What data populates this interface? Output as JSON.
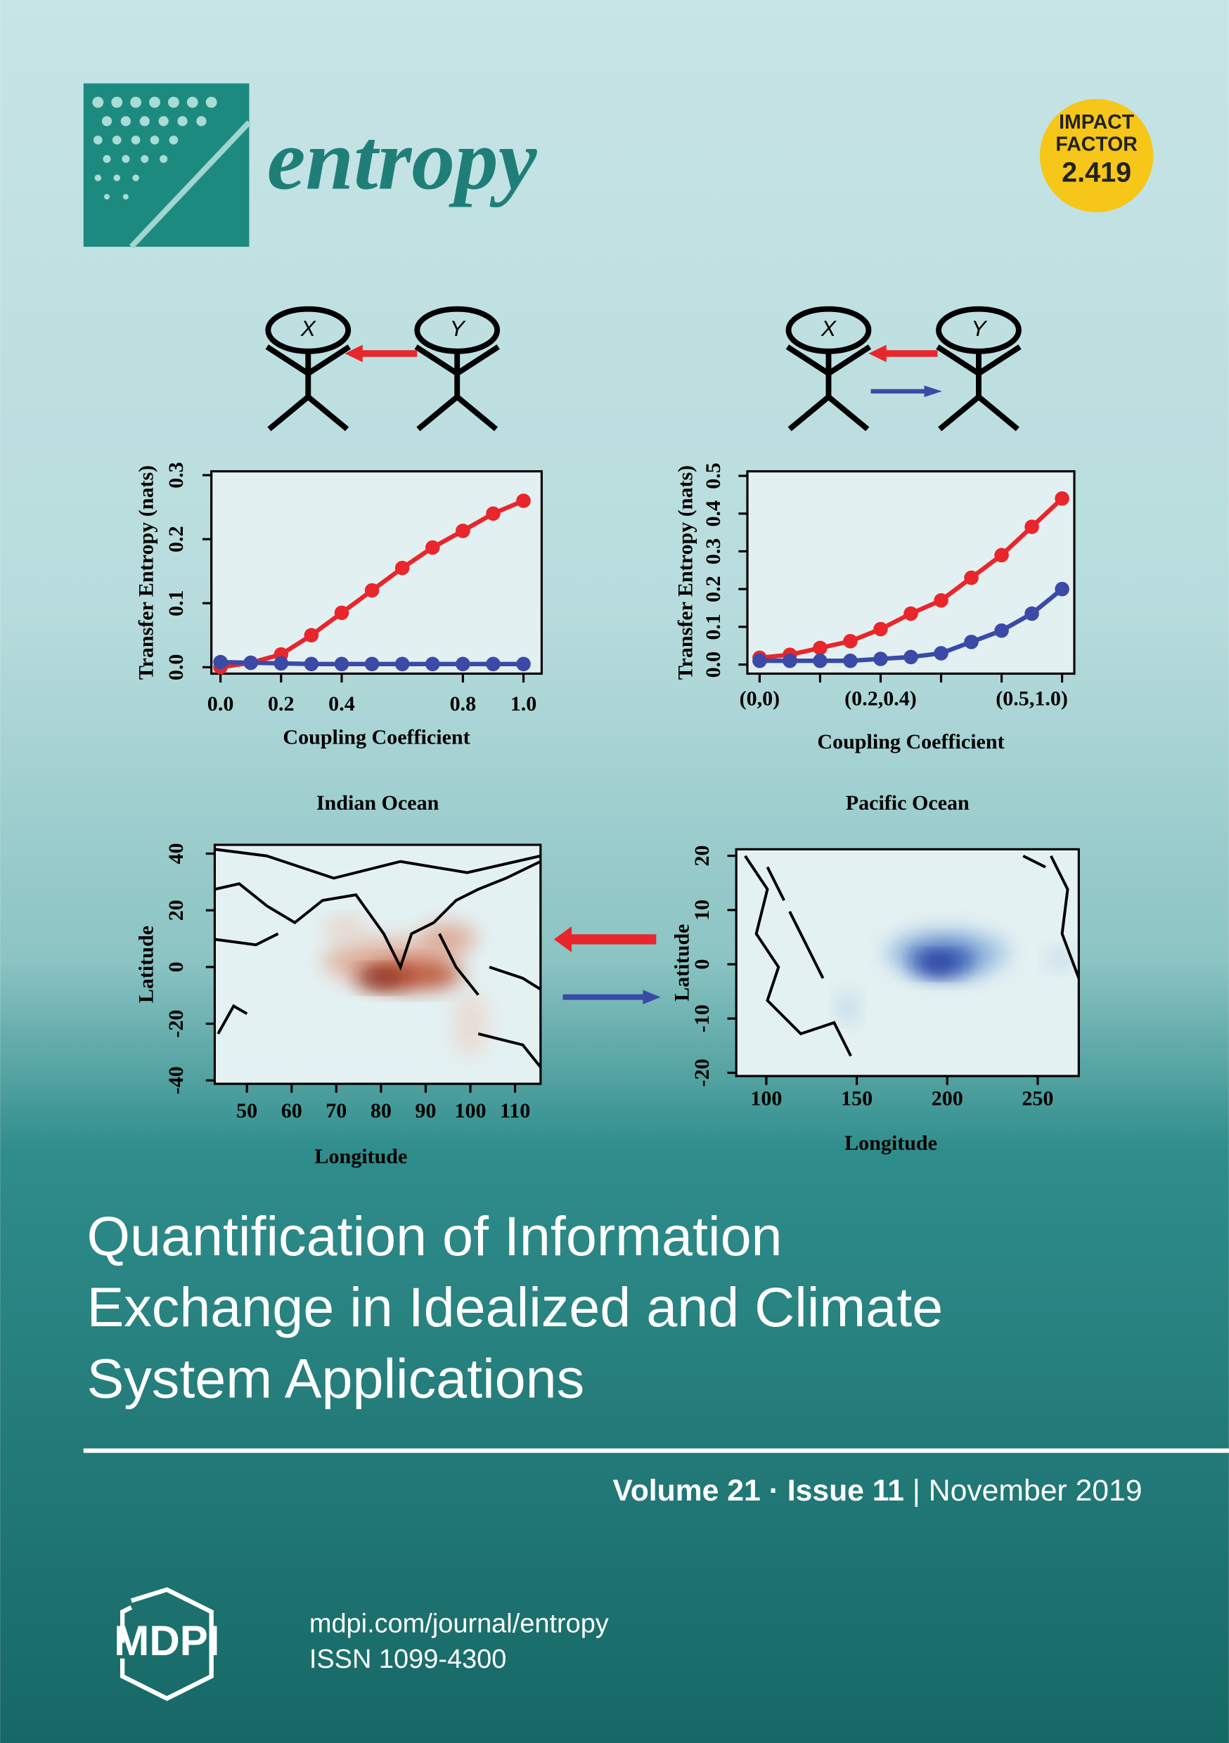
{
  "journal": {
    "name": "entropy",
    "impact_factor": {
      "label": [
        "IMPACT",
        "FACTOR"
      ],
      "value": "2.419"
    }
  },
  "diagrams": [
    {
      "nodes": [
        {
          "label": "X"
        },
        {
          "label": "Y"
        }
      ]
    },
    {
      "nodes": [
        {
          "label": "X"
        },
        {
          "label": "Y"
        }
      ]
    }
  ],
  "figures": [
    {
      "type": "line",
      "y_label": "Transfer Entropy (nats)",
      "x_label": "Coupling Coefficient",
      "x": [
        0,
        0.1,
        0.2,
        0.3,
        0.4,
        0.5,
        0.6,
        0.7,
        0.8,
        0.9,
        1.0
      ],
      "xlim": [
        -0.03,
        1.06
      ],
      "xticks": [
        {
          "value": 0,
          "label": "0.0"
        },
        0.2,
        0.4,
        0.8,
        {
          "value": 1,
          "label": "1.0"
        }
      ],
      "ylim": [
        -0.01,
        0.306
      ],
      "yticks": [
        {
          "value": 0,
          "label": "0.0"
        },
        0.1,
        0.2,
        0.3
      ],
      "series": [
        {
          "color": "#e8262b",
          "values": [
            0.0,
            0.007,
            0.02,
            0.05,
            0.085,
            0.12,
            0.155,
            0.187,
            0.213,
            0.24,
            0.26
          ]
        },
        {
          "color": "#3a4aa6",
          "values": [
            0.008,
            0.007,
            0.006,
            0.005,
            0.005,
            0.005,
            0.005,
            0.005,
            0.005,
            0.005,
            0.005
          ]
        }
      ]
    },
    {
      "type": "line",
      "y_label": "Transfer Entropy (nats)",
      "x_label": "Coupling Coefficient",
      "categories": [
        "(0,0)",
        null,
        null,
        null,
        "(0.2,0.4)",
        null,
        null,
        null,
        null,
        "(0.5,1.0)",
        null
      ],
      "ylim": [
        -0.024,
        0.512
      ],
      "yticks": [
        {
          "value": 0,
          "label": "0.0"
        },
        0.1,
        0.2,
        0.3,
        0.4,
        0.5
      ],
      "series": [
        {
          "color": "#e8262b",
          "values": [
            0.018,
            0.026,
            0.044,
            0.062,
            0.094,
            0.135,
            0.17,
            0.23,
            0.29,
            0.365,
            0.44
          ]
        },
        {
          "color": "#3a4aa6",
          "values": [
            0.01,
            0.01,
            0.01,
            0.01,
            0.015,
            0.02,
            0.03,
            0.06,
            0.09,
            0.135,
            0.2
          ]
        }
      ]
    },
    {
      "type": "map",
      "title": "Indian Ocean",
      "x_label": "Longitude",
      "y_label": "Latitude",
      "xlim": [
        42.8,
        115.7
      ],
      "xticks": [
        50,
        60,
        70,
        80,
        90,
        100,
        110
      ],
      "ylim": [
        -41.2,
        43.1
      ],
      "yticks": [
        -40,
        -20,
        0,
        20,
        40
      ]
    },
    {
      "type": "map",
      "title": "Pacific Ocean",
      "x_label": "Longitude",
      "y_label": "Latitude",
      "xlim": [
        83.4,
        272.7
      ],
      "xticks": [
        100,
        150,
        200,
        250
      ],
      "ylim": [
        -20.6,
        21.2
      ],
      "yticks": [
        -20,
        -10,
        0,
        10,
        20
      ]
    }
  ],
  "title": [
    "Quantification of Information",
    "Exchange in Idealized and Climate",
    "System Applications"
  ],
  "issue": {
    "volume": "Volume 21",
    "separator": "·",
    "number": "Issue 11",
    "divider": "|",
    "date": "November 2019"
  },
  "publisher": {
    "name": "MDPI",
    "url": "mdpi.com/journal/entropy",
    "issn": "ISSN 1099-4300"
  }
}
